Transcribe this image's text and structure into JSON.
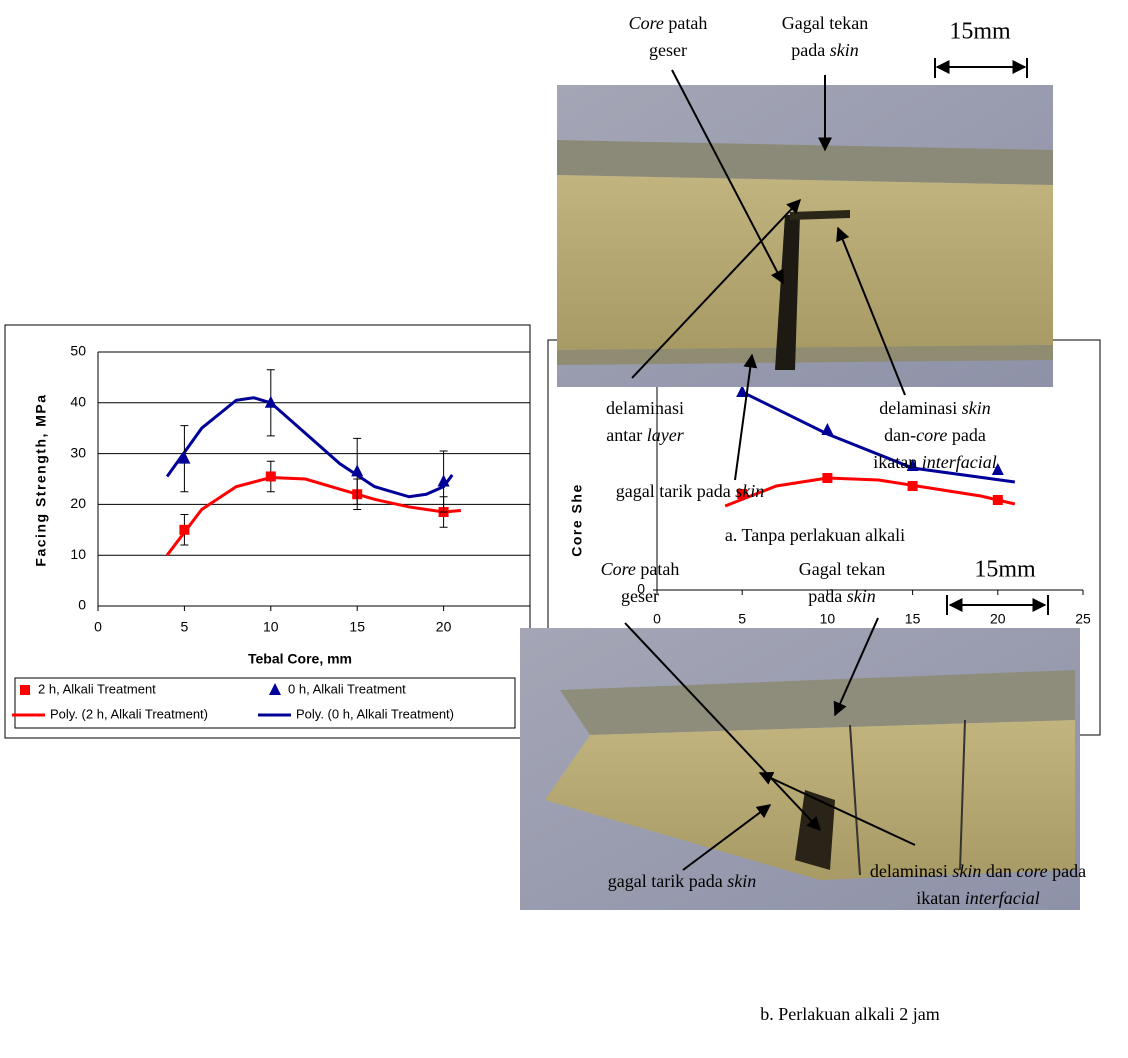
{
  "chart_data": [
    {
      "type": "line",
      "x_label": "Tebal Core, mm",
      "y_label": "Facing Strength, MPa",
      "xlim": [
        0,
        25
      ],
      "xticks": [
        0,
        5,
        10,
        15,
        20
      ],
      "ylim": [
        0,
        50
      ],
      "yticks": [
        0,
        10,
        20,
        30,
        40,
        50
      ],
      "grid": true,
      "legend": "bottom",
      "series": [
        {
          "name": "2 h, Alkali Treatment",
          "color": "#ff0000",
          "marker": "square",
          "x": [
            5,
            10,
            15,
            20
          ],
          "values": [
            15,
            25.5,
            22,
            18.5
          ],
          "errors": [
            3,
            3,
            3,
            3
          ]
        },
        {
          "name": "0 h, Alkali Treatment",
          "color": "#000099",
          "marker": "triangle",
          "x": [
            5,
            10,
            15,
            20
          ],
          "values": [
            29,
            40,
            26.5,
            24.5
          ],
          "errors": [
            6.5,
            6.5,
            6.5,
            6
          ]
        },
        {
          "name": "Poly. (2 h, Alkali Treatment)",
          "color": "#ff0000",
          "x": [
            4,
            6,
            8,
            10,
            12,
            14,
            16,
            18,
            20,
            21
          ],
          "values": [
            10,
            19,
            23.5,
            25.3,
            25,
            23,
            21,
            19.5,
            18.5,
            18.8
          ]
        },
        {
          "name": "Poly. (0 h, Alkali Treatment)",
          "color": "#000099",
          "x": [
            4,
            6,
            8,
            9,
            10,
            12,
            14,
            16,
            18,
            19,
            20,
            20.5
          ],
          "values": [
            25.5,
            35,
            40.5,
            41,
            40,
            34,
            28,
            23.5,
            21.5,
            22,
            23.5,
            25.8
          ]
        }
      ]
    },
    {
      "type": "line",
      "y_label": "Core She",
      "xlim": [
        0,
        25
      ],
      "xticks": [
        0,
        5,
        10,
        15,
        20,
        25
      ],
      "ylim": [
        0,
        6
      ],
      "yticks": [
        0
      ],
      "series": [
        {
          "color": "#ff0000",
          "marker": "square",
          "x": [
            5,
            10,
            15,
            20
          ],
          "values": [
            2.4,
            2.8,
            2.6,
            2.25
          ]
        },
        {
          "color": "#000099",
          "marker": "triangle",
          "x": [
            5,
            10,
            15,
            20
          ],
          "values": [
            4.95,
            4.0,
            3.1,
            3.0
          ]
        },
        {
          "color": "#ff0000",
          "x": [
            4,
            7,
            10,
            13,
            16,
            19,
            21
          ],
          "values": [
            2.1,
            2.6,
            2.8,
            2.75,
            2.55,
            2.35,
            2.15
          ]
        },
        {
          "color": "#000099",
          "x": [
            5,
            10,
            15,
            21
          ],
          "values": [
            4.95,
            3.9,
            3.05,
            2.7
          ]
        }
      ]
    }
  ],
  "photos": [
    {
      "caption": "a. Tanpa perlakuan alkali",
      "scale": "15mm",
      "annotations": [
        {
          "lines": [
            [
              {
                "text": "Core",
                "italic": true
              },
              {
                "text": " patah"
              }
            ],
            [
              {
                "text": "geser"
              }
            ]
          ]
        },
        {
          "lines": [
            [
              {
                "text": "Gagal tekan"
              }
            ],
            [
              {
                "text": "pada "
              },
              {
                "text": "skin",
                "italic": true
              }
            ]
          ]
        },
        {
          "lines": [
            [
              {
                "text": "delaminasi"
              }
            ],
            [
              {
                "text": "antar "
              },
              {
                "text": "layer",
                "italic": true
              }
            ]
          ]
        },
        {
          "lines": [
            [
              {
                "text": "delaminasi "
              },
              {
                "text": "skin",
                "italic": true
              }
            ],
            [
              {
                "text": "dan-"
              },
              {
                "text": "core",
                "italic": true
              },
              {
                "text": " pada"
              }
            ],
            [
              {
                "text": "ikatan "
              },
              {
                "text": "interfacial",
                "italic": true
              }
            ]
          ]
        },
        {
          "lines": [
            [
              {
                "text": "gagal tarik pada "
              },
              {
                "text": "skin",
                "italic": true
              }
            ]
          ]
        }
      ]
    },
    {
      "caption": "b. Perlakuan alkali 2 jam",
      "scale": "15mm",
      "annotations": [
        {
          "lines": [
            [
              {
                "text": "Core",
                "italic": true
              },
              {
                "text": " patah"
              }
            ],
            [
              {
                "text": "geser"
              }
            ]
          ]
        },
        {
          "lines": [
            [
              {
                "text": "Gagal tekan"
              }
            ],
            [
              {
                "text": "pada "
              },
              {
                "text": "skin",
                "italic": true
              }
            ]
          ]
        },
        {
          "lines": [
            [
              {
                "text": "gagal tarik pada "
              },
              {
                "text": "skin",
                "italic": true
              }
            ]
          ]
        },
        {
          "lines": [
            [
              {
                "text": "delaminasi "
              },
              {
                "text": "skin",
                "italic": true
              },
              {
                "text": " dan "
              },
              {
                "text": "core",
                "italic": true
              },
              {
                "text": " pada"
              }
            ],
            [
              {
                "text": "ikatan "
              },
              {
                "text": "interfacial",
                "italic": true
              }
            ]
          ]
        }
      ]
    }
  ]
}
